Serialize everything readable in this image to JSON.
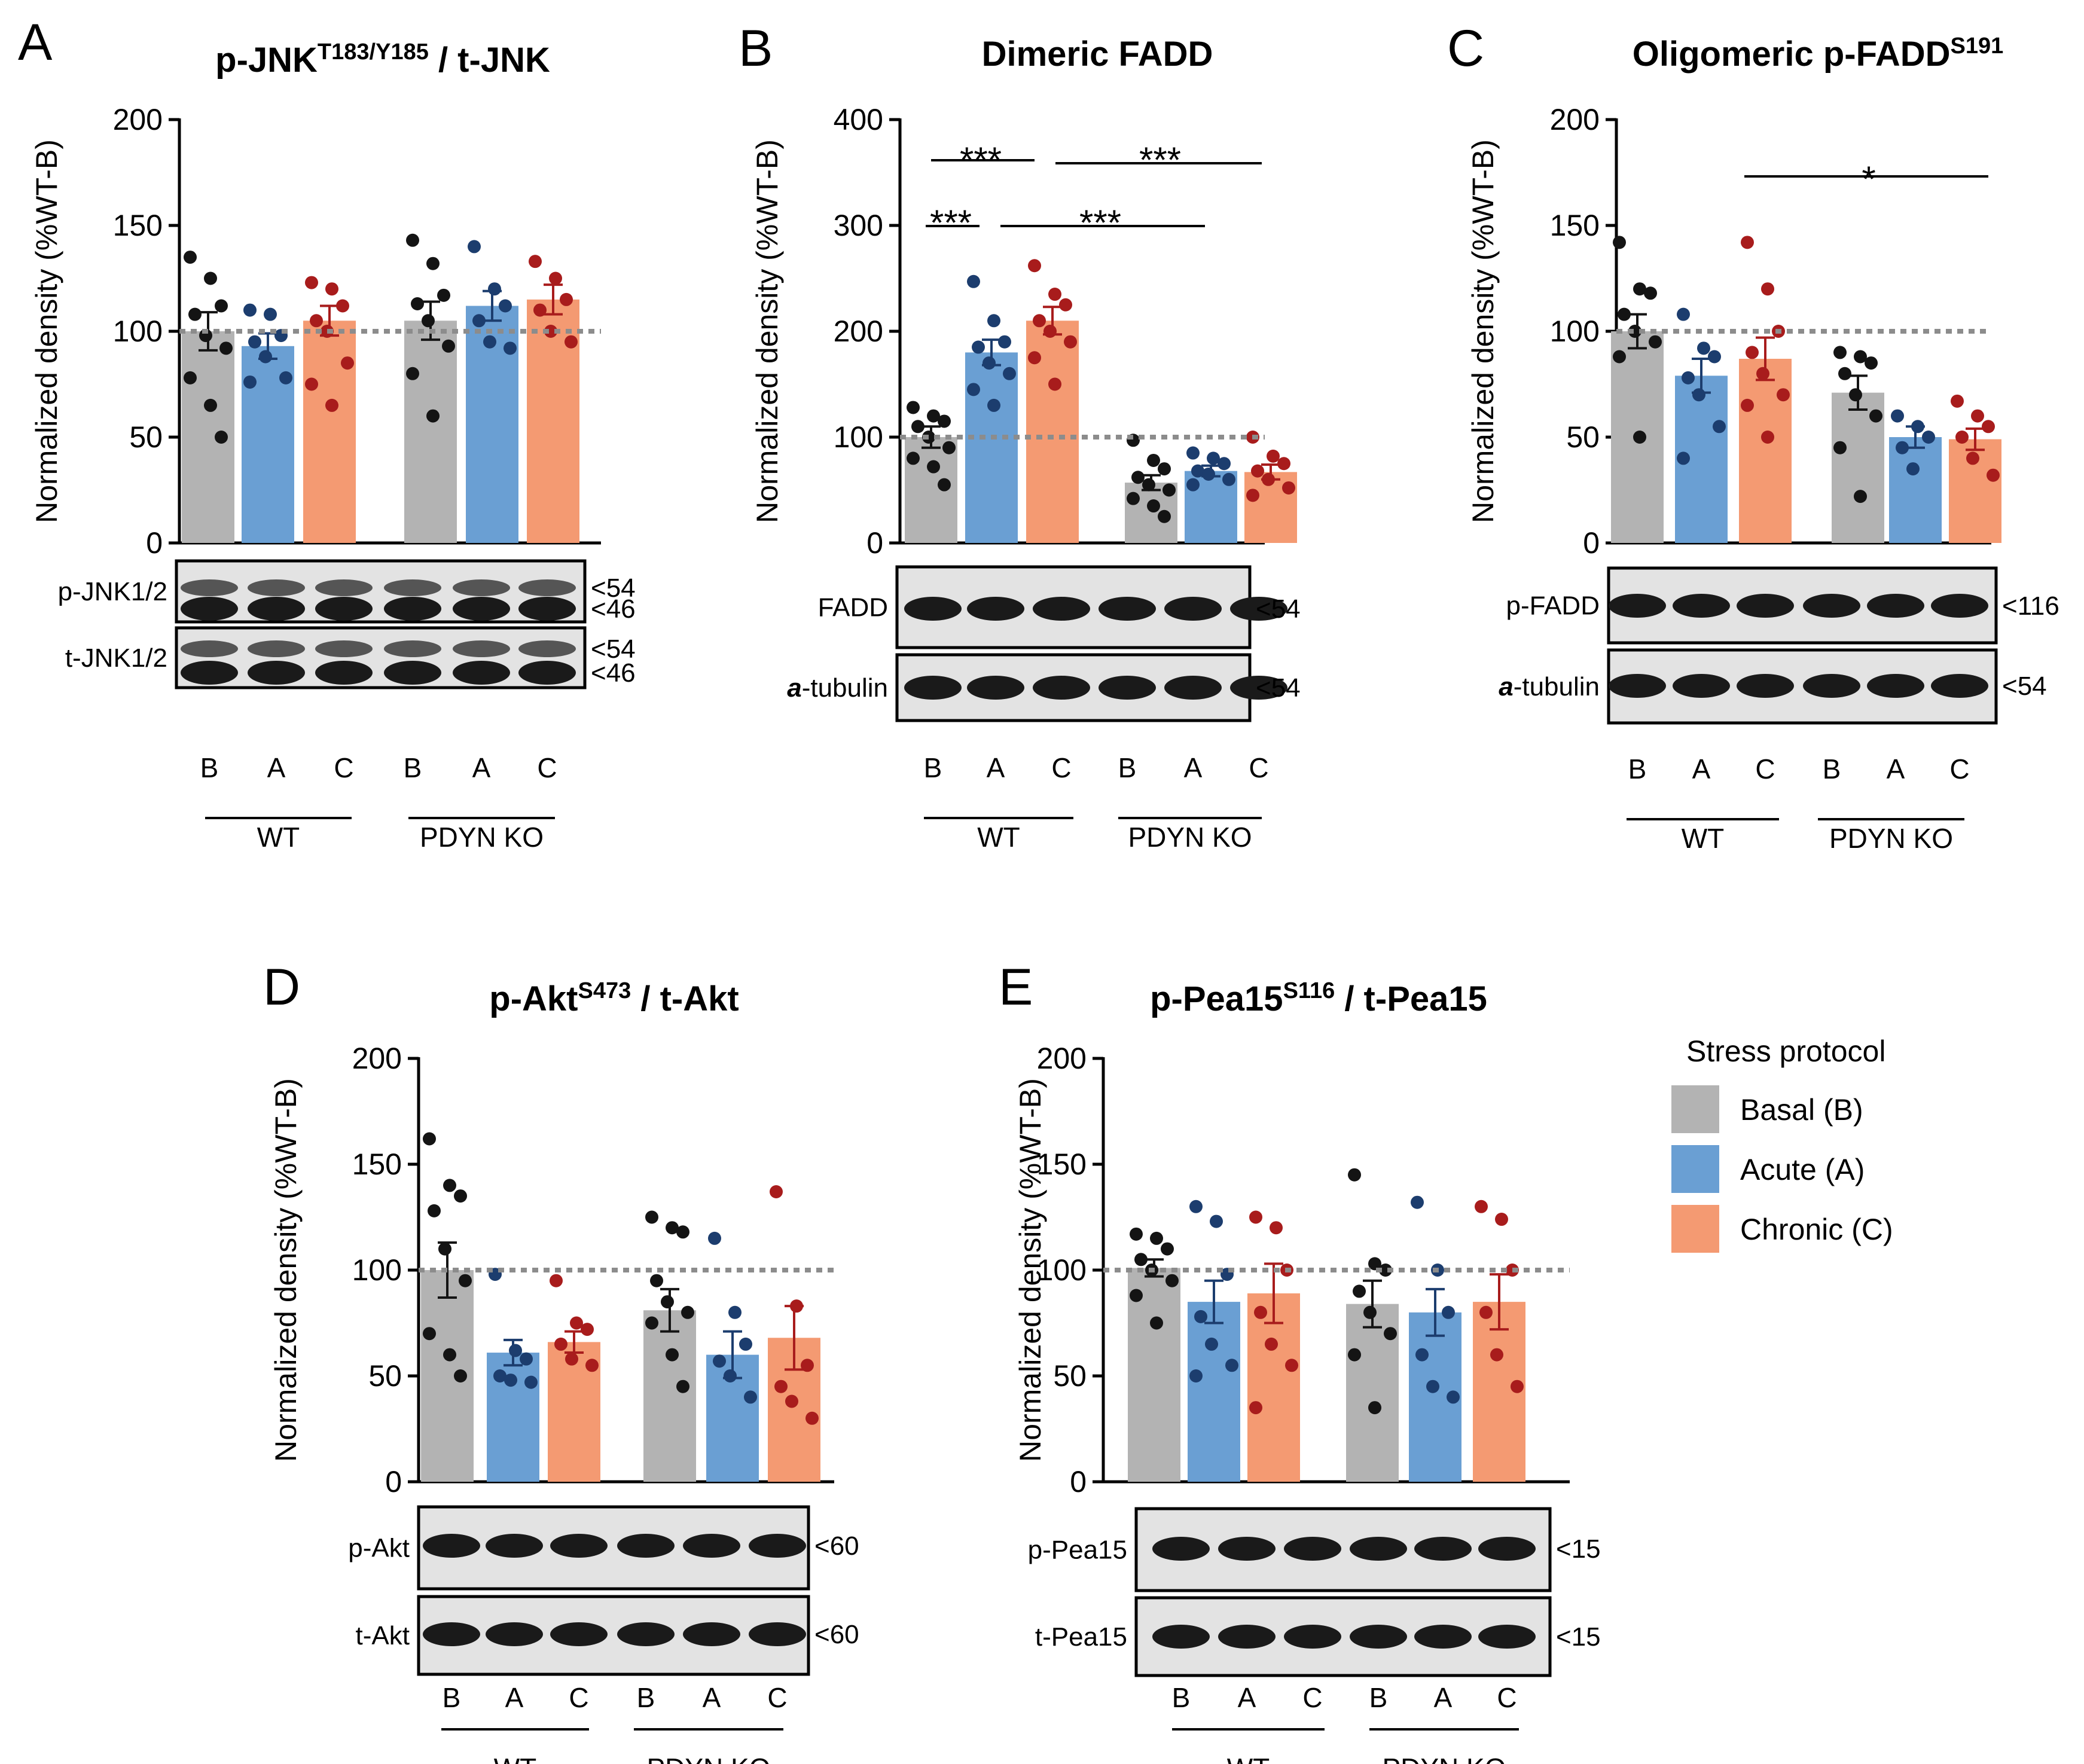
{
  "legend": {
    "title": "Stress protocol",
    "items": [
      {
        "label": "Basal (B)",
        "color": "#b3b3b3"
      },
      {
        "label": "Acute (A)",
        "color": "#6a9fd3"
      },
      {
        "label": "Chronic (C)",
        "color": "#f49a72"
      }
    ]
  },
  "colors": {
    "bar": [
      "#b3b3b3",
      "#6a9fd3",
      "#f49a72"
    ],
    "dot": [
      "#141414",
      "#1c3d6e",
      "#a81c1c"
    ],
    "dash": "#8c8c8c"
  },
  "panels": [
    {
      "letter": "A",
      "title_main": "p-JNK",
      "title_sup": "T183/Y185",
      "title_rest": " / t-JNK",
      "ylabel": "Normalized density (%WT-B)",
      "blots": [
        {
          "label": "p-JNK1/2",
          "mw": [
            "<54",
            "<46"
          ]
        },
        {
          "label": "t-JNK1/2",
          "mw": [
            "<54",
            "<46"
          ]
        }
      ],
      "lanes": [
        "B",
        "A",
        "C",
        "B",
        "A",
        "C"
      ],
      "groups": [
        "WT",
        "PDYN KO"
      ]
    },
    {
      "letter": "B",
      "title_main": "Dimeric FADD",
      "title_sup": "",
      "title_rest": "",
      "ylabel": "Normalized density (%WT-B)",
      "blots": [
        {
          "label": "FADD",
          "mw": [
            "<54"
          ]
        },
        {
          "label_italic": "a",
          "label": "-tubulin",
          "mw": [
            "<54"
          ]
        }
      ],
      "lanes": [
        "B",
        "A",
        "C",
        "B",
        "A",
        "C"
      ],
      "groups": [
        "WT",
        "PDYN KO"
      ],
      "sig": [
        "***",
        "***",
        "***",
        "***"
      ]
    },
    {
      "letter": "C",
      "title_main": "Oligomeric p-FADD",
      "title_sup": "S191",
      "title_rest": "",
      "ylabel": "Normalized density (%WT-B)",
      "blots": [
        {
          "label": "p-FADD",
          "mw": [
            "<116"
          ]
        },
        {
          "label_italic": "a",
          "label": "-tubulin",
          "mw": [
            "<54"
          ]
        }
      ],
      "lanes": [
        "B",
        "A",
        "C",
        "B",
        "A",
        "C"
      ],
      "groups": [
        "WT",
        "PDYN KO"
      ],
      "sig": [
        "*"
      ]
    },
    {
      "letter": "D",
      "title_main": "p-Akt",
      "title_sup": "S473",
      "title_rest": " / t-Akt",
      "ylabel": "Normalized density (%WT-B)",
      "blots": [
        {
          "label": "p-Akt",
          "mw": [
            "<60"
          ]
        },
        {
          "label": "t-Akt",
          "mw": [
            "<60"
          ]
        }
      ],
      "lanes": [
        "B",
        "A",
        "C",
        "B",
        "A",
        "C"
      ],
      "groups": [
        "WT",
        "PDYN KO"
      ]
    },
    {
      "letter": "E",
      "title_main": "p-Pea15",
      "title_sup": "S116",
      "title_rest": " / t-Pea15",
      "ylabel": "Normalized density (%WT-B)",
      "blots": [
        {
          "label": "p-Pea15",
          "mw": [
            "<15"
          ]
        },
        {
          "label": "t-Pea15",
          "mw": [
            "<15"
          ]
        }
      ],
      "lanes": [
        "B",
        "A",
        "C",
        "B",
        "A",
        "C"
      ],
      "groups": [
        "WT",
        "PDYN KO"
      ]
    }
  ],
  "chart_data": [
    {
      "type": "bar",
      "panel": "A",
      "title": "p-JNK T183/Y185 / t-JNK",
      "ylabel": "Normalized density (%WT-B)",
      "ylim": [
        0,
        200
      ],
      "yticks": [
        0,
        50,
        100,
        150,
        200
      ],
      "reference_line": 100,
      "categories": [
        "WT B",
        "WT A",
        "WT C",
        "PDYN KO B",
        "PDYN KO A",
        "PDYN KO C"
      ],
      "values": [
        100,
        93,
        105,
        105,
        112,
        115
      ],
      "sem": [
        9,
        6,
        7,
        9,
        7,
        7
      ],
      "points": [
        [
          135,
          125,
          112,
          108,
          98,
          92,
          78,
          65,
          50
        ],
        [
          110,
          108,
          98,
          95,
          88,
          78,
          76
        ],
        [
          123,
          120,
          112,
          105,
          100,
          85,
          75,
          65
        ],
        [
          143,
          132,
          117,
          113,
          105,
          93,
          80,
          60
        ],
        [
          140,
          120,
          112,
          105,
          95,
          92
        ],
        [
          133,
          125,
          115,
          110,
          100,
          95
        ]
      ]
    },
    {
      "type": "bar",
      "panel": "B",
      "title": "Dimeric FADD",
      "ylabel": "Normalized density (%WT-B)",
      "ylim": [
        0,
        400
      ],
      "yticks": [
        0,
        100,
        200,
        300,
        400
      ],
      "reference_line": 100,
      "categories": [
        "WT B",
        "WT A",
        "WT C",
        "PDYN KO B",
        "PDYN KO A",
        "PDYN KO C"
      ],
      "values": [
        100,
        180,
        210,
        57,
        68,
        67
      ],
      "sem": [
        10,
        12,
        13,
        7,
        5,
        7
      ],
      "points": [
        [
          128,
          120,
          115,
          110,
          100,
          90,
          80,
          72,
          55
        ],
        [
          247,
          210,
          190,
          185,
          170,
          160,
          145,
          130
        ],
        [
          262,
          235,
          225,
          210,
          200,
          190,
          175,
          150
        ],
        [
          97,
          78,
          70,
          62,
          55,
          50,
          42,
          35,
          25
        ],
        [
          85,
          80,
          75,
          68,
          65,
          60,
          55
        ],
        [
          100,
          82,
          75,
          68,
          60,
          52,
          45
        ]
      ],
      "significance": [
        {
          "from": "WT B",
          "to": "WT A",
          "label": "***"
        },
        {
          "from": "WT B",
          "to": "PDYN KO A",
          "label": "***"
        },
        {
          "from": "WT C",
          "to": "PDYN KO C",
          "label": "***"
        },
        {
          "from": "WT A",
          "to": "PDYN KO B",
          "label": "***"
        }
      ]
    },
    {
      "type": "bar",
      "panel": "C",
      "title": "Oligomeric p-FADD S191",
      "ylabel": "Normalized density (%WT-B)",
      "ylim": [
        0,
        200
      ],
      "yticks": [
        0,
        50,
        100,
        150,
        200
      ],
      "reference_line": 100,
      "categories": [
        "WT B",
        "WT A",
        "WT C",
        "PDYN KO B",
        "PDYN KO A",
        "PDYN KO C"
      ],
      "values": [
        100,
        79,
        87,
        71,
        50,
        49
      ],
      "sem": [
        8,
        8,
        10,
        8,
        5,
        5
      ],
      "points": [
        [
          142,
          120,
          118,
          108,
          100,
          95,
          88,
          50
        ],
        [
          108,
          92,
          88,
          78,
          70,
          55,
          40
        ],
        [
          142,
          120,
          100,
          90,
          80,
          70,
          65,
          50
        ],
        [
          90,
          88,
          85,
          80,
          70,
          60,
          45,
          22
        ],
        [
          60,
          55,
          50,
          45,
          35
        ],
        [
          67,
          60,
          55,
          50,
          40,
          32
        ]
      ],
      "significance": [
        {
          "from": "WT C",
          "to": "PDYN KO C",
          "label": "*"
        }
      ]
    },
    {
      "type": "bar",
      "panel": "D",
      "title": "p-Akt S473 / t-Akt",
      "ylabel": "Normalized density (%WT-B)",
      "ylim": [
        0,
        200
      ],
      "yticks": [
        0,
        50,
        100,
        150,
        200
      ],
      "reference_line": 100,
      "categories": [
        "WT B",
        "WT A",
        "WT C",
        "PDYN KO B",
        "PDYN KO A",
        "PDYN KO C"
      ],
      "values": [
        100,
        61,
        66,
        81,
        60,
        68
      ],
      "sem": [
        13,
        6,
        5,
        10,
        11,
        15
      ],
      "points": [
        [
          162,
          140,
          135,
          128,
          110,
          95,
          70,
          60,
          50
        ],
        [
          98,
          62,
          58,
          50,
          48,
          47
        ],
        [
          95,
          75,
          72,
          65,
          58,
          55
        ],
        [
          125,
          120,
          118,
          95,
          85,
          80,
          75,
          60,
          45
        ],
        [
          115,
          80,
          65,
          57,
          50,
          40
        ],
        [
          137,
          83,
          55,
          45,
          38,
          30
        ]
      ]
    },
    {
      "type": "bar",
      "panel": "E",
      "title": "p-Pea15 S116 / t-Pea15",
      "ylabel": "Normalized density (%WT-B)",
      "ylim": [
        0,
        200
      ],
      "yticks": [
        0,
        50,
        100,
        150,
        200
      ],
      "reference_line": 100,
      "categories": [
        "WT B",
        "WT A",
        "WT C",
        "PDYN KO B",
        "PDYN KO A",
        "PDYN KO C"
      ],
      "values": [
        101,
        85,
        89,
        84,
        80,
        85
      ],
      "sem": [
        4,
        10,
        14,
        11,
        11,
        13
      ],
      "points": [
        [
          117,
          115,
          110,
          105,
          100,
          95,
          88,
          75
        ],
        [
          130,
          123,
          98,
          78,
          65,
          55,
          50
        ],
        [
          125,
          120,
          100,
          80,
          65,
          55,
          35
        ],
        [
          145,
          103,
          100,
          90,
          80,
          70,
          60,
          35
        ],
        [
          132,
          100,
          80,
          60,
          45,
          40
        ],
        [
          130,
          124,
          100,
          80,
          60,
          45
        ]
      ]
    }
  ]
}
